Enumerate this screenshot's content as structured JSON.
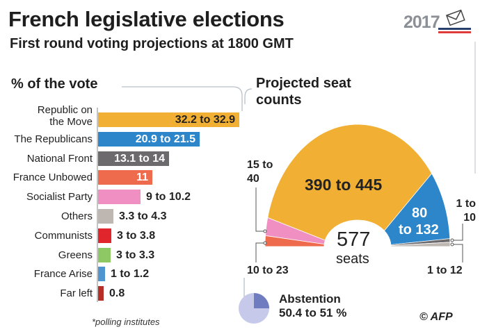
{
  "header": {
    "title": "French legislative elections",
    "subtitle": "First round voting projections at 1800 GMT",
    "logo_year": "2017"
  },
  "colors": {
    "lrem": "#f1af33",
    "lr": "#2c86c9",
    "fn": "#6d6a6d",
    "fi": "#ee6b4d",
    "ps": "#f08fc1",
    "others": "#bdb6b1",
    "pcf": "#e0262c",
    "greens": "#8ec865",
    "dlf": "#4f95cf",
    "farleft": "#b72e26"
  },
  "chart_data": [
    {
      "type": "bar",
      "title": "% of the vote",
      "footnote": "*polling institutes",
      "categories": [
        "Republic on the Move",
        "The Republicans",
        "National Front",
        "France Unbowed",
        "Socialist Party",
        "Others",
        "Communists",
        "Greens",
        "France Arise",
        "Far left"
      ],
      "label_lines": [
        [
          "Republic on",
          "the Move"
        ],
        [
          "The Republicans"
        ],
        [
          "National Front"
        ],
        [
          "France Unbowed"
        ],
        [
          "Socialist Party"
        ],
        [
          "Others"
        ],
        [
          "Communists"
        ],
        [
          "Greens"
        ],
        [
          "France Arise"
        ],
        [
          "Far left"
        ]
      ],
      "series": [
        {
          "name": "low",
          "values": [
            32.2,
            20.9,
            13.1,
            11,
            9,
            3.3,
            3,
            3,
            1,
            0.8
          ]
        },
        {
          "name": "high",
          "values": [
            32.9,
            21.5,
            14,
            11,
            10.2,
            4.3,
            3.8,
            3.3,
            1.2,
            0.8
          ]
        }
      ],
      "value_labels": [
        "32.2 to 32.9",
        "20.9 to 21.5",
        "13.1 to 14",
        "11",
        "9 to 10.2",
        "3.3 to 4.3",
        "3 to 3.8",
        "3 to 3.3",
        "1 to 1.2",
        "0.8"
      ],
      "color_keys": [
        "lrem",
        "lr",
        "fn",
        "fi",
        "ps",
        "others",
        "pcf",
        "greens",
        "dlf",
        "farleft"
      ]
    },
    {
      "type": "pie",
      "title": "Projected seat counts",
      "total": "577",
      "total_unit": "seats",
      "slices": [
        {
          "party": "France Unbowed",
          "label": "10 to 23",
          "low": 10,
          "high": 23,
          "color_key": "fi"
        },
        {
          "party": "Socialist Party",
          "label": "15 to 40",
          "low": 15,
          "high": 40,
          "color_key": "ps"
        },
        {
          "party": "Republic on the Move",
          "label": "390 to 445",
          "low": 390,
          "high": 445,
          "color_key": "lrem"
        },
        {
          "party": "The Republicans",
          "label_a": "80",
          "label_b": "to 132",
          "low": 80,
          "high": 132,
          "color_key": "lr"
        },
        {
          "party": "National Front",
          "label": "1 to 10",
          "low": 1,
          "high": 10,
          "color_key": "fn"
        },
        {
          "party": "Others",
          "label": "1 to 12",
          "low": 1,
          "high": 12,
          "color_key": "others"
        }
      ]
    },
    {
      "type": "pie",
      "title": "Abstention",
      "value_label": "50.4 to 51 %"
    }
  ],
  "credit": "© AFP"
}
